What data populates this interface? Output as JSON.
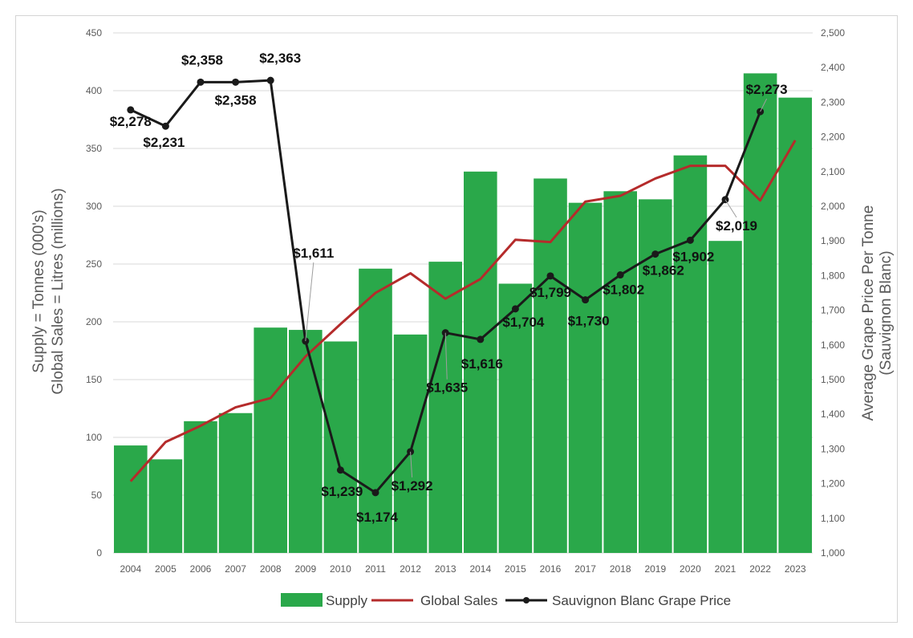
{
  "chart_data": {
    "type": "bar",
    "categories": [
      "2004",
      "2005",
      "2006",
      "2007",
      "2008",
      "2009",
      "2010",
      "2011",
      "2012",
      "2013",
      "2014",
      "2015",
      "2016",
      "2017",
      "2018",
      "2019",
      "2020",
      "2021",
      "2022",
      "2023"
    ],
    "series": [
      {
        "name": "Supply",
        "type": "bar",
        "axis": "left",
        "color": "#2aa84a",
        "values": [
          93,
          81,
          114,
          121,
          195,
          193,
          183,
          246,
          189,
          252,
          330,
          233,
          324,
          303,
          313,
          306,
          344,
          270,
          415,
          394
        ]
      },
      {
        "name": "Global Sales",
        "type": "line",
        "axis": "left",
        "color": "#b52b2b",
        "values": [
          62,
          96,
          110,
          126,
          134,
          170,
          198,
          225,
          242,
          220,
          237,
          271,
          269,
          304,
          309,
          324,
          335,
          335,
          305,
          357
        ]
      },
      {
        "name": "Sauvignon Blanc Grape Price",
        "type": "line",
        "axis": "right",
        "color": "#1a1a1a",
        "values": [
          2278,
          2231,
          2358,
          2358,
          2363,
          1611,
          1239,
          1174,
          1292,
          1635,
          1616,
          1704,
          1799,
          1730,
          1802,
          1862,
          1902,
          2019,
          2273,
          null
        ],
        "labels": [
          "$2,278",
          "$2,231",
          "$2,358",
          "$2,358",
          "$2,363",
          "$1,611",
          "$1,239",
          "$1,174",
          "$1,292",
          "$1,635",
          "$1,616",
          "$1,704",
          "$1,799",
          "$1,730",
          "$1,802",
          "$1,862",
          "$1,902",
          "$2,019",
          "$2,273",
          ""
        ]
      }
    ],
    "ylabel_left_line1": "Supply = Tonnes (000's)",
    "ylabel_left_line2": "Global Sales = Litres (millions)",
    "ylabel_right_line1": "Average Grape Price Per Tonne",
    "ylabel_right_line2": "(Sauvignon Blanc)",
    "ylim_left": [
      0,
      450
    ],
    "ylim_right": [
      1000,
      2500
    ],
    "yticks_left": [
      "0",
      "50",
      "100",
      "150",
      "200",
      "250",
      "300",
      "350",
      "400",
      "450"
    ],
    "yticks_right": [
      "1,000",
      "1,100",
      "1,200",
      "1,300",
      "1,400",
      "1,500",
      "1,600",
      "1,700",
      "1,800",
      "1,900",
      "2,000",
      "2,100",
      "2,200",
      "2,300",
      "2,400",
      "2,500"
    ],
    "legend": [
      "Supply",
      "Global Sales",
      "Sauvignon Blanc Grape Price"
    ],
    "grid": true,
    "legend_position": "bottom"
  }
}
